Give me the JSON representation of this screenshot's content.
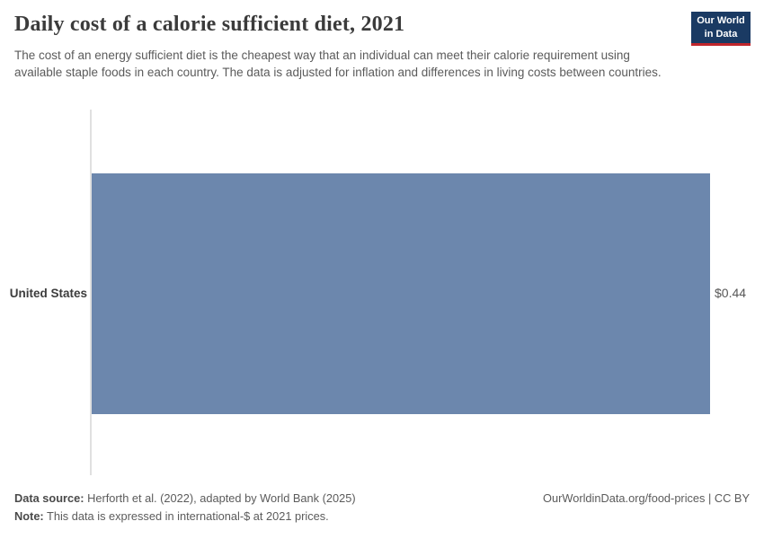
{
  "header": {
    "title": "Daily cost of a calorie sufficient diet, 2021",
    "subtitle": "The cost of an energy sufficient diet is the cheapest way that an individual can meet their calorie requirement using available staple foods in each country. The data is adjusted for inflation and differences in living costs between countries.",
    "logo": {
      "line1": "Our World",
      "line2": "in Data"
    }
  },
  "chart_data": {
    "type": "bar",
    "orientation": "horizontal",
    "title": "Daily cost of a calorie sufficient diet, 2021",
    "categories": [
      "United States"
    ],
    "values": [
      0.44
    ],
    "value_labels": [
      "$0.44"
    ],
    "unit": "international-$ per day",
    "xlabel": "",
    "ylabel": "",
    "xlim": [
      0,
      0.44
    ],
    "grid": false,
    "legend": "none"
  },
  "footer": {
    "data_source_label": "Data source:",
    "data_source_text": " Herforth et al. (2022), adapted by World Bank (2025)",
    "note_label": "Note:",
    "note_text": " This data is expressed in international-$ at 2021 prices.",
    "attribution": "OurWorldinData.org/food-prices | CC BY"
  },
  "colors": {
    "bar_color": "#6c87ad",
    "logo_bg": "#1a3a63",
    "logo_red": "#c0262c",
    "axis_line": "#e0e0e0"
  }
}
